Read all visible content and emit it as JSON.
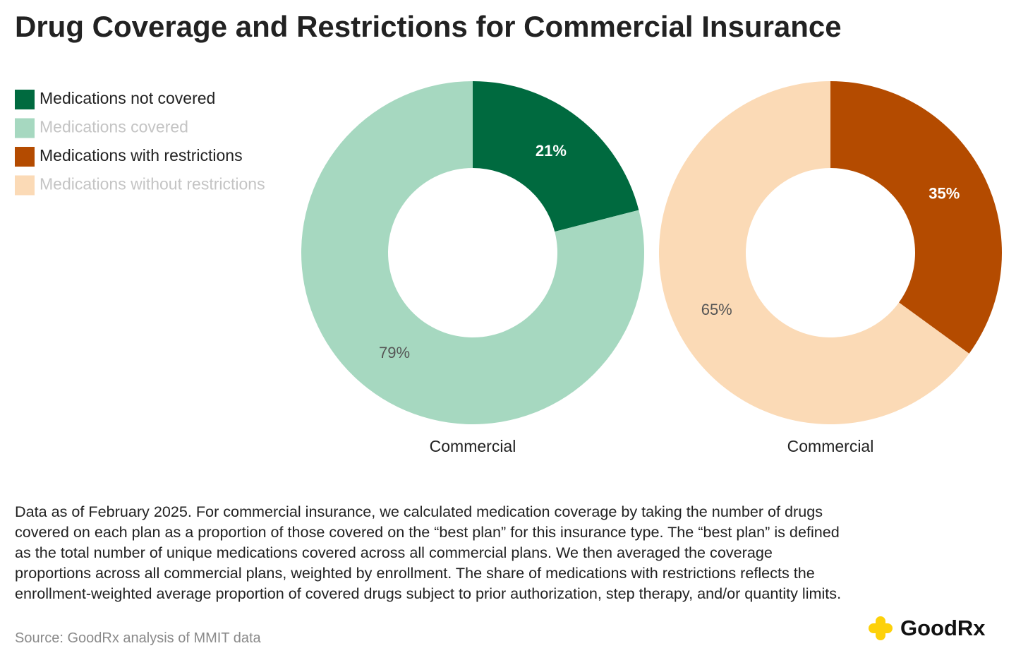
{
  "title": "Drug Coverage and Restrictions for Commercial Insurance",
  "chart_data": [
    {
      "type": "donut",
      "categories": [
        "Medications not covered",
        "Medications covered"
      ],
      "values": [
        21,
        79
      ],
      "value_labels": [
        "21%",
        "79%"
      ],
      "colors": [
        "#006a3f",
        "#a6d8c0"
      ],
      "xlabel": "Commercial"
    },
    {
      "type": "donut",
      "categories": [
        "Medications with restrictions",
        "Medications without restrictions"
      ],
      "values": [
        35,
        65
      ],
      "value_labels": [
        "35%",
        "65%"
      ],
      "colors": [
        "#b44b00",
        "#fbdab6"
      ],
      "xlabel": "Commercial"
    }
  ],
  "footnote": "Data as of February 2025. For commercial insurance, we calculated medication coverage by taking the number of drugs covered on each plan as a proportion of those covered on the “best plan” for this insurance type. The “best plan” is defined as the total number of unique medications covered across all commercial plans. We then averaged the coverage proportions across all commercial plans, weighted by enrollment. The share of medications with restrictions reflects the enrollment-weighted average proportion of covered drugs subject to prior authorization, step therapy, and/or quantity limits.",
  "source": "Source: GoodRx analysis of MMIT data",
  "logo": "GoodRx"
}
